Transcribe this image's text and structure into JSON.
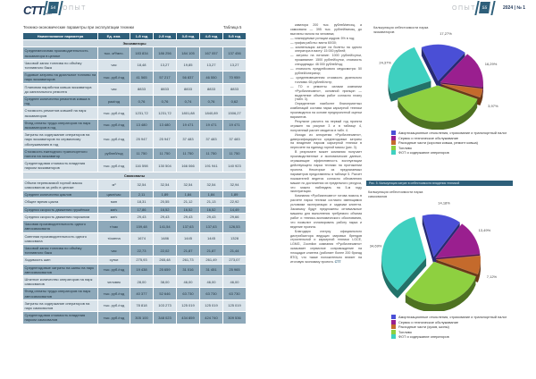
{
  "left_page": {
    "logo": "CTT",
    "logo_sub": "expert",
    "page_number": "54",
    "section": "ОПЫТ"
  },
  "right_page": {
    "section": "ОПЫТ",
    "page_number": "55",
    "issue_year": "2024",
    "issue_number": "№ 1"
  },
  "table": {
    "title": "Технико-экономические параметры при эксплуатации техники",
    "label": "Таблица 5",
    "headers": [
      "Наименование параметра",
      "Ед. изм.",
      "1-й год",
      "2-й год",
      "3-й год",
      "4-й год",
      "5-й год"
    ],
    "sections": [
      {
        "name": "Экскаваторы",
        "rows": [
          {
            "name": "Среднемесячная производительность экскаватора в целике",
            "unit": "тыс. м³/мес.",
            "v": [
              "183 834",
              "186 256",
              "184 105",
              "167 057",
              "137 456"
            ]
          },
          {
            "name": "Часовой запас топлива по объёму топливного бака",
            "unit": "час",
            "v": [
              "18,48",
              "13,27",
              "19,85",
              "13,27",
              "13,27"
            ]
          },
          {
            "name": "Годовые затраты на дизельное топливо на парк экскаваторов",
            "unit": "тыс. руб./год",
            "v": [
              "41 565",
              "57 217",
              "56 837",
              "46 550",
              "70 959"
            ]
          },
          {
            "name": "Плановая наработка ковша экскаватора до капитального ремонта",
            "unit": "час",
            "v": [
              "8833",
              "8833",
              "8833",
              "8833",
              "8833"
            ]
          },
          {
            "name": "Среднее количество ремонтов ковша в год",
            "unit": "раз/год",
            "v": [
              "0,76",
              "0,76",
              "0,74",
              "0,76",
              "0,62"
            ]
          },
          {
            "name": "Стоимость ремонтов ковшей на парк экскаваторов",
            "unit": "тыс. руб./год",
            "v": [
              "1231,72",
              "1231,72",
              "1801,88",
              "1840,89",
              "1506,27"
            ]
          },
          {
            "name": "Фонд оплаты труда операторов на парк экскаваторов в год",
            "unit": "тыс. руб./год",
            "v": [
              "13 480",
              "13 480",
              "19 471",
              "19 471",
              "19 471"
            ]
          },
          {
            "name": "Затраты на содержание операторов на парк экскаваторов по сервисному обслуживанию в год",
            "unit": "тыс. руб./год",
            "v": [
              "25 947",
              "25 947",
              "37 483",
              "37 483",
              "37 483"
            ]
          },
          {
            "name": "Стоимость ежегодного транспортного налога на экскаватор",
            "unit": "рублей/год",
            "v": [
              "11 750",
              "11 750",
              "11 750",
              "11 750",
              "11 750"
            ]
          },
          {
            "name": "Среднегодовая стоимость владения парком экскаваторов",
            "unit": "тыс. руб./год",
            "v": [
              "116 598",
              "130 504",
              "166 066",
              "191 941",
              "140 923"
            ]
          }
        ]
      },
      {
        "name": "Самосвалы",
        "rows": [
          {
            "name": "Объем перевозимой горной массы самосвалом за рейс в целике",
            "unit": "м³",
            "v": [
              "32,54",
              "32,54",
              "32,54",
              "32,54",
              "32,94"
            ]
          },
          {
            "name": "Среднее количество циклов",
            "unit": "цикл/час",
            "v": [
              "2,11",
              "1,89",
              "1,84",
              "1,84",
              "1,89"
            ]
          },
          {
            "name": "Общее время цикла",
            "unit": "мин",
            "v": [
              "18,31",
              "20,55",
              "21,12",
              "21,13",
              "22,92"
            ]
          },
          {
            "name": "Средняя скорость движения гружёным",
            "unit": "км/ч",
            "v": [
              "17,86",
              "16,52",
              "16,52",
              "16,52",
              "14,49"
            ]
          },
          {
            "name": "Средняя скорость движения порожним",
            "unit": "км/ч",
            "v": [
              "29,43",
              "29,43",
              "29,43",
              "29,43",
              "29,66"
            ]
          },
          {
            "name": "Часовая производительность одного автосамосвала",
            "unit": "т/час",
            "v": [
              "159,48",
              "141,54",
              "137,63",
              "137,63",
              "126,53"
            ]
          },
          {
            "name": "Сменная производительность одного самосвала",
            "unit": "т/смена",
            "v": [
              "1674",
              "1486",
              "1445",
              "1445",
              "1328"
            ]
          },
          {
            "name": "Часовой запас топлива по объёму топливного бака",
            "unit": "час",
            "v": [
              "22,73",
              "22,02",
              "21,87",
              "21,87",
              "21,44"
            ]
          },
          {
            "name": "Ходимость шин",
            "unit": "сутки",
            "v": [
              "275,93",
              "265,48",
              "261,73",
              "261,49",
              "273,07"
            ]
          },
          {
            "name": "Среднегодовые затраты на шины на парк автосамосвалов",
            "unit": "тыс. руб./год",
            "v": [
              "19 438",
              "25 659",
              "31 016",
              "31 451",
              "25 965"
            ]
          },
          {
            "name": "Штатное количество операторов на парк самосвалов",
            "unit": "человек",
            "v": [
              "28,00",
              "38,00",
              "46,00",
              "46,00",
              "46,00"
            ]
          },
          {
            "name": "Фонд оплаты труда операторов на парк автосамосвалов",
            "unit": "тыс. руб./год",
            "v": [
              "40 377",
              "52 646",
              "63 730",
              "63 730",
              "63 730"
            ]
          },
          {
            "name": "Затраты на содержание операторов на парк самосвалов",
            "unit": "тыс. руб./год",
            "v": [
              "78 818",
              "103 273",
              "125 019",
              "125 019",
              "125 019"
            ]
          },
          {
            "name": "Среднегодовая стоимость владения парком самосвалов",
            "unit": "тыс. руб./год",
            "v": [
              "305 100",
              "348 023",
              "434 859",
              "424 740",
              "309 536"
            ]
          }
        ]
      }
    ]
  },
  "body_text": [
    {
      "li": false,
      "t": "каватора 200 тыс. рублей/месяц, а самосвала — 395 тыс. рублей/месяц до выплаты налога на человека;"
    },
    {
      "li": true,
      "t": "— планируемые ротации кадров: 5% в год;"
    },
    {
      "li": true,
      "t": "— график работы: вахта 60/30;"
    },
    {
      "li": true,
      "t": "— компенсация затрат на билеты на одного оператора в вахту: 15 000 рублей;"
    },
    {
      "li": true,
      "t": "— затраты на питание: 1000 рублей/сутки, проживание: 1500 рублей/сутки, стоимость спецодежды: 46 000 рублей/год;"
    },
    {
      "li": true,
      "t": "— стоимость предрейсового медосмотра: 50 рублей/оператор;"
    },
    {
      "li": true,
      "t": "— средневзвешенная стоимость дизельного топлива: 65 рублей/литр;"
    },
    {
      "li": true,
      "t": "— ТО и ремонты: силами компании «Русбизнесавто», основной принцип — выделение объема работ согласно плану (табл. 3)."
    },
    {
      "li": false,
      "t": "Определение наиболее благоприятных комбинаций состава парка карьерной техники производится на основе предпроектной оценки вариантов."
    },
    {
      "li": false,
      "t": "Результат расчета на первый год проекта отражен на рисунке 3 и в таблице 4, полученный расчет сводится в табл. 4."
    },
    {
      "li": false,
      "t": "Исходя из алгоритма «Русбизнесавто», диверсифицируются среднегодовые затраты на владение парком карьерной техники в пересчете на единицу горной массы (рис. 3)."
    },
    {
      "li": false,
      "t": "В результате может компания получает производственные и экономические данные, отражающие эффективность эксплуатации действующего парка техники на протяжении проекта. Некоторые из предлагаемых параметров представлены в таблице 5. Расчет показателей ведется согласно обновлению машин по достижении их предельного ресурса, что можно наблюдать на 5-м году эксплуатации."
    },
    {
      "li": false,
      "t": "Компания «Русбизнесавто» готова помочь в расчете парка техники согласно имеющимся условиям эксплуатации и задачам клиента. Заказчику будут предложены оптимальные машины для выполнения требуемого объема работ и технико-экономического обоснования, что позволит спланировать работу парка и ведение проекта."
    },
    {
      "li": false,
      "t": "Благодаря статусу официального дистрибьютора ведущих мировых брендов строительной и карьерной техники LGCE, LGMG, Zoomlion компания «Русбизнесавто» оказывает сервисное сопровождение на площадке клиента (работает более 200 бригад ВТО), что также положительно влияет на итоговую экономику проекта."
    }
  ],
  "body_end_mark": "СТТ",
  "chart_data": [
    {
      "type": "pie",
      "title": "Калькуляция себестоимости парка экскаваторов",
      "labels": [
        "Амортизационные отчисления, страхование и транспортный налог",
        "Сервис и техническое обслуживание",
        "Расходные части (коронки ковша, ремонт ковша)",
        "Топливо",
        "ФОТ и содержание операторов"
      ],
      "values": [
        17.27,
        16.29,
        3.97,
        38.1,
        24.37
      ],
      "value_labels": [
        "17,27%",
        "16,29%",
        "3,97%",
        "38,10%",
        "24,37%"
      ],
      "colors": [
        "#4a4fd6",
        "#9a1f8f",
        "#c46a2c",
        "#8ed040",
        "#3fd0c0"
      ],
      "legend": "bottom"
    },
    {
      "type": "pie",
      "title": "Калькуляция себестоимости парка самосвалов",
      "labels": [
        "Амортизационные отчисления, страхование и транспортный налог",
        "Сервис и техническое обслуживание",
        "Расходные части (кузов, шины)",
        "Топливо",
        "ФОТ и содержание операторов"
      ],
      "values": [
        14.18,
        13.49,
        7.12,
        30.5,
        34.69
      ],
      "value_labels": [
        "14,18%",
        "13,49%",
        "7,12%",
        "30,50%",
        "34,69%"
      ],
      "colors": [
        "#4a4fd6",
        "#9a1f8f",
        "#c46a2c",
        "#8ed040",
        "#3fd0c0"
      ],
      "legend": "bottom"
    }
  ],
  "figure_caption": "Рис. 5. Калькуляция затрат в себестоимости владения техникой"
}
